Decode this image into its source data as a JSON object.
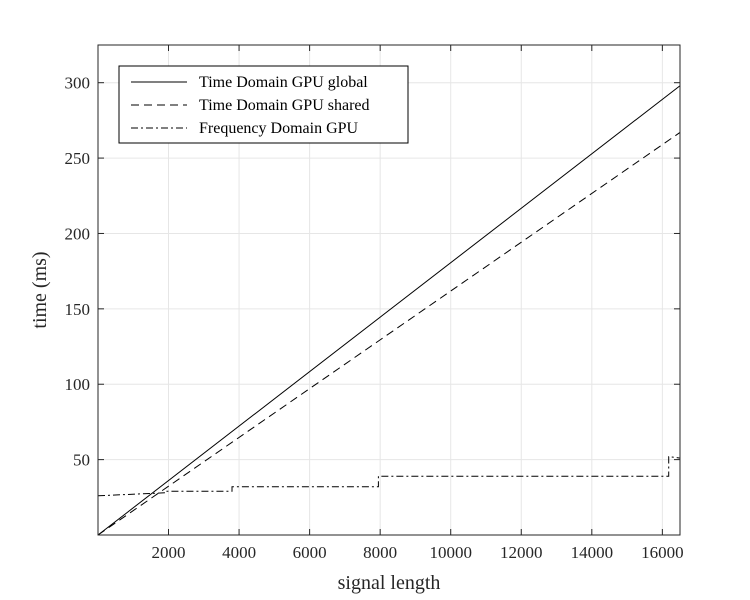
{
  "chart_data": {
    "type": "line",
    "title": "",
    "xlabel": "signal length",
    "ylabel": "time (ms)",
    "xlim": [
      1,
      16500
    ],
    "ylim": [
      0,
      325
    ],
    "xticks": [
      2000,
      4000,
      6000,
      8000,
      10000,
      12000,
      14000,
      16000
    ],
    "yticks": [
      50,
      100,
      150,
      200,
      250,
      300
    ],
    "grid": true,
    "legend_position": "top-left",
    "colors": {
      "axis": "#262626",
      "grid": "#e6e6e6",
      "series": "#000000"
    },
    "series": [
      {
        "name": "Time Domain GPU global",
        "style": "solid",
        "x": [
          1,
          16500
        ],
        "y": [
          0,
          298
        ]
      },
      {
        "name": "Time Domain GPU shared",
        "style": "dashed",
        "x": [
          1,
          16500
        ],
        "y": [
          0,
          267
        ]
      },
      {
        "name": "Frequency Domain  GPU",
        "style": "dashdot",
        "x": [
          1,
          1900,
          1900,
          3800,
          3800,
          7950,
          7950,
          16180,
          16180,
          16500
        ],
        "y": [
          26,
          28,
          29,
          29,
          32,
          32,
          39,
          39,
          52,
          51
        ]
      }
    ]
  }
}
